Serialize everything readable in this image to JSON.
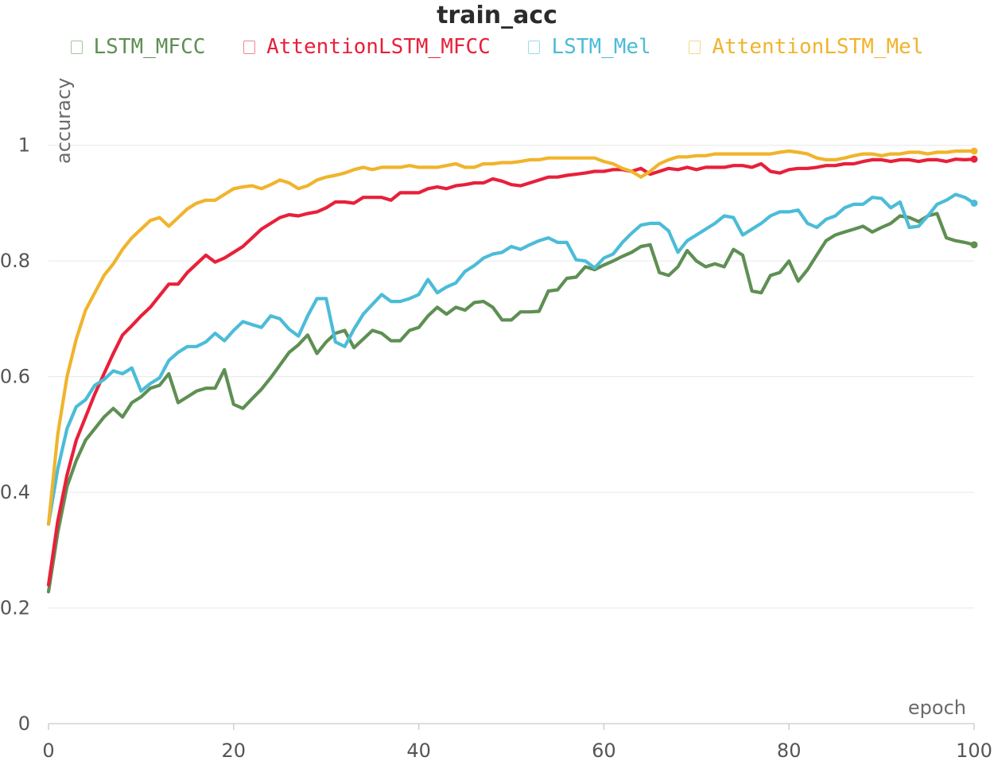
{
  "chart_data": {
    "type": "line",
    "title": "train_acc",
    "xlabel": "epoch",
    "ylabel": "accuracy",
    "xlim": [
      0,
      100
    ],
    "ylim": [
      0,
      1.1
    ],
    "xticks": [
      "0",
      "20",
      "40",
      "60",
      "80",
      "100"
    ],
    "yticks": [
      "0",
      "0.2",
      "0.4",
      "0.6",
      "0.8",
      "1"
    ],
    "xtick_values": [
      0,
      20,
      40,
      60,
      80,
      100
    ],
    "ytick_values": [
      0,
      0.2,
      0.4,
      0.6,
      0.8,
      1
    ],
    "grid": true,
    "legend_position": "top",
    "series": [
      {
        "name": "LSTM_MFCC",
        "color": "#5e8f53",
        "x": [
          0,
          1,
          2,
          3,
          4,
          5,
          6,
          7,
          8,
          9,
          10,
          11,
          12,
          13,
          14,
          15,
          16,
          17,
          18,
          19,
          20,
          21,
          22,
          23,
          24,
          25,
          26,
          27,
          28,
          29,
          30,
          31,
          32,
          33,
          34,
          35,
          36,
          37,
          38,
          39,
          40,
          41,
          42,
          43,
          44,
          45,
          46,
          47,
          48,
          49,
          50,
          51,
          52,
          53,
          54,
          55,
          56,
          57,
          58,
          59,
          60,
          61,
          62,
          63,
          64,
          65,
          66,
          67,
          68,
          69,
          70,
          71,
          72,
          73,
          74,
          75,
          76,
          77,
          78,
          79,
          80,
          81,
          82,
          83,
          84,
          85,
          86,
          87,
          88,
          89,
          90,
          91,
          92,
          93,
          94,
          95,
          96,
          97,
          98,
          99,
          100
        ],
        "y": [
          0.228,
          0.33,
          0.41,
          0.455,
          0.49,
          0.51,
          0.53,
          0.545,
          0.53,
          0.555,
          0.565,
          0.58,
          0.585,
          0.605,
          0.555,
          0.565,
          0.575,
          0.58,
          0.58,
          0.612,
          0.552,
          0.545,
          0.562,
          0.578,
          0.598,
          0.62,
          0.642,
          0.655,
          0.672,
          0.64,
          0.66,
          0.675,
          0.68,
          0.65,
          0.665,
          0.68,
          0.675,
          0.662,
          0.662,
          0.68,
          0.685,
          0.705,
          0.72,
          0.708,
          0.72,
          0.715,
          0.728,
          0.73,
          0.72,
          0.698,
          0.698,
          0.712,
          0.712,
          0.713,
          0.748,
          0.75,
          0.77,
          0.772,
          0.79,
          0.785,
          0.793,
          0.8,
          0.808,
          0.815,
          0.825,
          0.828,
          0.78,
          0.775,
          0.79,
          0.818,
          0.8,
          0.79,
          0.795,
          0.79,
          0.82,
          0.81,
          0.748,
          0.745,
          0.775,
          0.78,
          0.8,
          0.765,
          0.785,
          0.81,
          0.835,
          0.845,
          0.85,
          0.855,
          0.86,
          0.85,
          0.858,
          0.865,
          0.878,
          0.875,
          0.868,
          0.878,
          0.882,
          0.84,
          0.835,
          0.832,
          0.828
        ]
      },
      {
        "name": "AttentionLSTM_MFCC",
        "color": "#e8203a",
        "x": [
          0,
          1,
          2,
          3,
          4,
          5,
          6,
          7,
          8,
          9,
          10,
          11,
          12,
          13,
          14,
          15,
          16,
          17,
          18,
          19,
          20,
          21,
          22,
          23,
          24,
          25,
          26,
          27,
          28,
          29,
          30,
          31,
          32,
          33,
          34,
          35,
          36,
          37,
          38,
          39,
          40,
          41,
          42,
          43,
          44,
          45,
          46,
          47,
          48,
          49,
          50,
          51,
          52,
          53,
          54,
          55,
          56,
          57,
          58,
          59,
          60,
          61,
          62,
          63,
          64,
          65,
          66,
          67,
          68,
          69,
          70,
          71,
          72,
          73,
          74,
          75,
          76,
          77,
          78,
          79,
          80,
          81,
          82,
          83,
          84,
          85,
          86,
          87,
          88,
          89,
          90,
          91,
          92,
          93,
          94,
          95,
          96,
          97,
          98,
          99,
          100
        ],
        "y": [
          0.24,
          0.35,
          0.43,
          0.49,
          0.53,
          0.57,
          0.605,
          0.64,
          0.672,
          0.688,
          0.705,
          0.72,
          0.74,
          0.76,
          0.76,
          0.78,
          0.795,
          0.81,
          0.798,
          0.805,
          0.815,
          0.825,
          0.84,
          0.855,
          0.865,
          0.875,
          0.88,
          0.878,
          0.882,
          0.885,
          0.892,
          0.902,
          0.902,
          0.9,
          0.91,
          0.91,
          0.91,
          0.905,
          0.918,
          0.918,
          0.918,
          0.925,
          0.928,
          0.925,
          0.93,
          0.932,
          0.935,
          0.935,
          0.942,
          0.938,
          0.932,
          0.93,
          0.935,
          0.94,
          0.945,
          0.945,
          0.948,
          0.95,
          0.952,
          0.955,
          0.955,
          0.958,
          0.958,
          0.955,
          0.96,
          0.95,
          0.955,
          0.96,
          0.958,
          0.962,
          0.958,
          0.962,
          0.962,
          0.962,
          0.965,
          0.965,
          0.962,
          0.968,
          0.955,
          0.952,
          0.958,
          0.96,
          0.96,
          0.962,
          0.965,
          0.965,
          0.968,
          0.968,
          0.972,
          0.975,
          0.975,
          0.972,
          0.975,
          0.975,
          0.972,
          0.975,
          0.975,
          0.972,
          0.976,
          0.975,
          0.976
        ]
      },
      {
        "name": "LSTM_Mel",
        "color": "#4bbcd8",
        "x": [
          0,
          1,
          2,
          3,
          4,
          5,
          6,
          7,
          8,
          9,
          10,
          11,
          12,
          13,
          14,
          15,
          16,
          17,
          18,
          19,
          20,
          21,
          22,
          23,
          24,
          25,
          26,
          27,
          28,
          29,
          30,
          31,
          32,
          33,
          34,
          35,
          36,
          37,
          38,
          39,
          40,
          41,
          42,
          43,
          44,
          45,
          46,
          47,
          48,
          49,
          50,
          51,
          52,
          53,
          54,
          55,
          56,
          57,
          58,
          59,
          60,
          61,
          62,
          63,
          64,
          65,
          66,
          67,
          68,
          69,
          70,
          71,
          72,
          73,
          74,
          75,
          76,
          77,
          78,
          79,
          80,
          81,
          82,
          83,
          84,
          85,
          86,
          87,
          88,
          89,
          90,
          91,
          92,
          93,
          94,
          95,
          96,
          97,
          98,
          99,
          100
        ],
        "y": [
          0.345,
          0.44,
          0.51,
          0.548,
          0.56,
          0.585,
          0.595,
          0.61,
          0.605,
          0.615,
          0.575,
          0.588,
          0.598,
          0.628,
          0.642,
          0.652,
          0.652,
          0.66,
          0.675,
          0.662,
          0.68,
          0.695,
          0.69,
          0.685,
          0.705,
          0.7,
          0.682,
          0.67,
          0.705,
          0.735,
          0.735,
          0.66,
          0.652,
          0.682,
          0.708,
          0.725,
          0.742,
          0.73,
          0.73,
          0.735,
          0.742,
          0.768,
          0.745,
          0.755,
          0.762,
          0.782,
          0.792,
          0.805,
          0.812,
          0.815,
          0.825,
          0.82,
          0.828,
          0.835,
          0.84,
          0.832,
          0.832,
          0.802,
          0.8,
          0.788,
          0.805,
          0.812,
          0.832,
          0.848,
          0.862,
          0.865,
          0.865,
          0.852,
          0.815,
          0.835,
          0.845,
          0.855,
          0.865,
          0.878,
          0.875,
          0.845,
          0.855,
          0.865,
          0.878,
          0.885,
          0.885,
          0.888,
          0.865,
          0.858,
          0.872,
          0.878,
          0.892,
          0.898,
          0.898,
          0.91,
          0.908,
          0.892,
          0.902,
          0.858,
          0.86,
          0.878,
          0.898,
          0.905,
          0.915,
          0.91,
          0.9
        ]
      },
      {
        "name": "AttentionLSTM_Mel",
        "color": "#f0b42c",
        "x": [
          0,
          1,
          2,
          3,
          4,
          5,
          6,
          7,
          8,
          9,
          10,
          11,
          12,
          13,
          14,
          15,
          16,
          17,
          18,
          19,
          20,
          21,
          22,
          23,
          24,
          25,
          26,
          27,
          28,
          29,
          30,
          31,
          32,
          33,
          34,
          35,
          36,
          37,
          38,
          39,
          40,
          41,
          42,
          43,
          44,
          45,
          46,
          47,
          48,
          49,
          50,
          51,
          52,
          53,
          54,
          55,
          56,
          57,
          58,
          59,
          60,
          61,
          62,
          63,
          64,
          65,
          66,
          67,
          68,
          69,
          70,
          71,
          72,
          73,
          74,
          75,
          76,
          77,
          78,
          79,
          80,
          81,
          82,
          83,
          84,
          85,
          86,
          87,
          88,
          89,
          90,
          91,
          92,
          93,
          94,
          95,
          96,
          97,
          98,
          99,
          100
        ],
        "y": [
          0.345,
          0.5,
          0.6,
          0.665,
          0.715,
          0.745,
          0.775,
          0.795,
          0.82,
          0.84,
          0.855,
          0.87,
          0.875,
          0.86,
          0.875,
          0.89,
          0.9,
          0.905,
          0.905,
          0.915,
          0.925,
          0.928,
          0.93,
          0.925,
          0.932,
          0.94,
          0.935,
          0.925,
          0.93,
          0.94,
          0.945,
          0.948,
          0.952,
          0.958,
          0.962,
          0.958,
          0.962,
          0.962,
          0.962,
          0.965,
          0.962,
          0.962,
          0.962,
          0.965,
          0.968,
          0.962,
          0.962,
          0.968,
          0.968,
          0.97,
          0.97,
          0.972,
          0.975,
          0.975,
          0.978,
          0.978,
          0.978,
          0.978,
          0.978,
          0.978,
          0.972,
          0.968,
          0.96,
          0.955,
          0.945,
          0.955,
          0.968,
          0.975,
          0.98,
          0.98,
          0.982,
          0.982,
          0.985,
          0.985,
          0.985,
          0.985,
          0.985,
          0.985,
          0.985,
          0.988,
          0.99,
          0.988,
          0.985,
          0.978,
          0.975,
          0.975,
          0.978,
          0.982,
          0.985,
          0.985,
          0.982,
          0.985,
          0.985,
          0.988,
          0.988,
          0.985,
          0.988,
          0.988,
          0.99,
          0.99,
          0.99
        ]
      }
    ]
  }
}
